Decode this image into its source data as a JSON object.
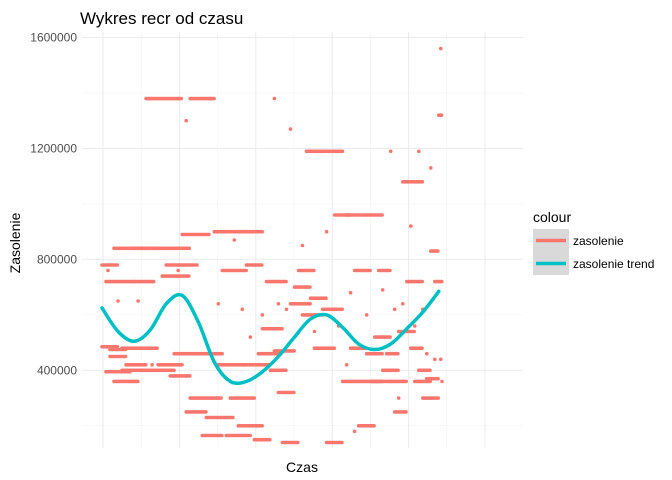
{
  "chart_data": {
    "type": "scatter",
    "title": "Wykres recr od czasu",
    "xlabel": "Czas",
    "ylabel": "Zasolenie",
    "xlim": [
      0,
      100
    ],
    "ylim": [
      120000,
      1620000
    ],
    "yticks": [
      400000,
      800000,
      1200000,
      1600000
    ],
    "ytick_labels": [
      "400000",
      "800000",
      "1200000",
      "1600000"
    ],
    "xticks": [],
    "grid": true,
    "legend": {
      "title": "colour",
      "position": "right",
      "entries": [
        {
          "label": "zasolenie",
          "color": "#F8766D"
        },
        {
          "label": "zasolenie trend",
          "color": "#00BFC4"
        }
      ]
    },
    "series": [
      {
        "name": "zasolenie",
        "kind": "points",
        "color": "#F8766D",
        "segments": [
          [
            0,
            4,
            485000
          ],
          [
            0,
            4,
            780000
          ],
          [
            1,
            7,
            395000
          ],
          [
            1,
            8,
            720000
          ],
          [
            2,
            6,
            450000
          ],
          [
            3,
            12,
            840000
          ],
          [
            2,
            6,
            475000
          ],
          [
            3,
            9,
            360000
          ],
          [
            5,
            12,
            400000
          ],
          [
            5,
            14,
            480000
          ],
          [
            6,
            11,
            420000
          ],
          [
            8,
            13,
            720000
          ],
          [
            8,
            14,
            840000
          ],
          [
            11,
            20,
            1380000
          ],
          [
            12,
            18,
            400000
          ],
          [
            13,
            22,
            840000
          ],
          [
            14,
            20,
            420000
          ],
          [
            15,
            22,
            740000
          ],
          [
            16,
            24,
            780000
          ],
          [
            17,
            22,
            380000
          ],
          [
            18,
            24,
            460000
          ],
          [
            20,
            27,
            890000
          ],
          [
            21,
            26,
            250000
          ],
          [
            22,
            28,
            1380000
          ],
          [
            22,
            30,
            300000
          ],
          [
            24,
            30,
            460000
          ],
          [
            25,
            30,
            165000
          ],
          [
            26,
            33,
            230000
          ],
          [
            28,
            36,
            900000
          ],
          [
            29,
            36,
            420000
          ],
          [
            30,
            36,
            760000
          ],
          [
            31,
            37,
            165000
          ],
          [
            32,
            38,
            300000
          ],
          [
            34,
            40,
            200000
          ],
          [
            34,
            40,
            900000
          ],
          [
            35,
            42,
            420000
          ],
          [
            36,
            40,
            780000
          ],
          [
            38,
            42,
            150000
          ],
          [
            39,
            44,
            460000
          ],
          [
            40,
            45,
            550000
          ],
          [
            41,
            46,
            720000
          ],
          [
            42,
            46,
            400000
          ],
          [
            43,
            48,
            470000
          ],
          [
            44,
            48,
            320000
          ],
          [
            45,
            49,
            140000
          ],
          [
            47,
            52,
            640000
          ],
          [
            48,
            52,
            700000
          ],
          [
            49,
            53,
            760000
          ],
          [
            50,
            55,
            600000
          ],
          [
            51,
            55,
            1190000
          ],
          [
            52,
            56,
            660000
          ],
          [
            53,
            58,
            480000
          ],
          [
            54,
            60,
            1190000
          ],
          [
            55,
            60,
            620000
          ],
          [
            56,
            60,
            140000
          ],
          [
            58,
            62,
            960000
          ],
          [
            60,
            65,
            360000
          ],
          [
            61,
            66,
            960000
          ],
          [
            62,
            66,
            480000
          ],
          [
            63,
            67,
            760000
          ],
          [
            64,
            68,
            200000
          ],
          [
            65,
            70,
            360000
          ],
          [
            66,
            70,
            460000
          ],
          [
            66,
            70,
            960000
          ],
          [
            67,
            72,
            360000
          ],
          [
            68,
            72,
            520000
          ],
          [
            69,
            72,
            760000
          ],
          [
            70,
            74,
            400000
          ],
          [
            71,
            74,
            460000
          ],
          [
            72,
            76,
            360000
          ],
          [
            73,
            76,
            250000
          ],
          [
            74,
            78,
            540000
          ],
          [
            75,
            80,
            1080000
          ],
          [
            76,
            80,
            720000
          ],
          [
            77,
            80,
            480000
          ],
          [
            78,
            82,
            360000
          ],
          [
            79,
            82,
            400000
          ],
          [
            80,
            84,
            300000
          ],
          [
            81,
            84,
            370000
          ],
          [
            82,
            84,
            830000
          ],
          [
            83,
            85,
            720000
          ],
          [
            84,
            85,
            1320000
          ]
        ],
        "isolated": [
          [
            1.5,
            760000
          ],
          [
            4,
            650000
          ],
          [
            9,
            650000
          ],
          [
            12.5,
            420000
          ],
          [
            19,
            760000
          ],
          [
            21,
            1300000
          ],
          [
            27,
            1380000
          ],
          [
            29,
            640000
          ],
          [
            33,
            870000
          ],
          [
            35,
            620000
          ],
          [
            37,
            520000
          ],
          [
            40,
            600000
          ],
          [
            43,
            1380000
          ],
          [
            44,
            640000
          ],
          [
            46,
            620000
          ],
          [
            47,
            1270000
          ],
          [
            50,
            850000
          ],
          [
            53,
            540000
          ],
          [
            56,
            900000
          ],
          [
            59,
            560000
          ],
          [
            61,
            420000
          ],
          [
            62,
            680000
          ],
          [
            63,
            180000
          ],
          [
            66,
            600000
          ],
          [
            67,
            200000
          ],
          [
            70,
            690000
          ],
          [
            72,
            1190000
          ],
          [
            73,
            620000
          ],
          [
            74,
            300000
          ],
          [
            75,
            640000
          ],
          [
            77,
            920000
          ],
          [
            78,
            560000
          ],
          [
            79,
            1190000
          ],
          [
            80,
            620000
          ],
          [
            82,
            1130000
          ],
          [
            83,
            440000
          ],
          [
            84.5,
            1560000
          ],
          [
            84.5,
            440000
          ],
          [
            84.8,
            360000
          ],
          [
            81,
            460000
          ]
        ]
      },
      {
        "name": "zasolenie trend",
        "kind": "line",
        "color": "#00BFC4",
        "x": [
          0,
          4,
          8,
          12,
          16,
          20,
          24,
          28,
          32,
          36,
          40,
          44,
          48,
          52,
          56,
          60,
          64,
          68,
          72,
          76,
          80,
          84
        ],
        "y": [
          625000,
          540000,
          505000,
          545000,
          640000,
          670000,
          575000,
          430000,
          360000,
          360000,
          395000,
          450000,
          520000,
          585000,
          600000,
          555000,
          495000,
          475000,
          495000,
          550000,
          610000,
          685000
        ]
      }
    ]
  }
}
